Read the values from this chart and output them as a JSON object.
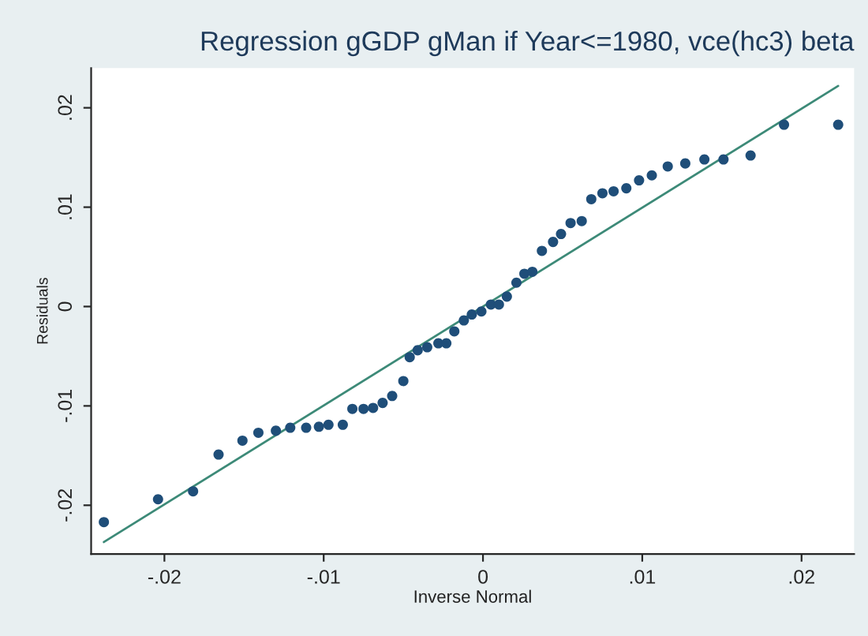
{
  "chart_data": {
    "type": "scatter",
    "title": "Regression gGDP gMan if Year<=1980, vce(hc3) beta",
    "xlabel": "Inverse Normal",
    "ylabel": "Residuals",
    "series": [
      {
        "color": "#1f4e79",
        "marker": "circle",
        "x": [
          -0.0238,
          -0.0204,
          -0.0182,
          -0.0166,
          -0.0151,
          -0.0141,
          -0.013,
          -0.0121,
          -0.0111,
          -0.0103,
          -0.0097,
          -0.0088,
          -0.0082,
          -0.0075,
          -0.0069,
          -0.0063,
          -0.0057,
          -0.005,
          -0.0046,
          -0.0041,
          -0.0035,
          -0.0028,
          -0.0023,
          -0.0018,
          -0.0012,
          -0.0007,
          -0.0001,
          0.0005,
          0.001,
          0.0015,
          0.0021,
          0.0026,
          0.0031,
          0.0037,
          0.0044,
          0.0049,
          0.0055,
          0.0062,
          0.0068,
          0.0075,
          0.0082,
          0.009,
          0.0098,
          0.0106,
          0.0116,
          0.0127,
          0.0139,
          0.0151,
          0.0168,
          0.0189,
          0.0223
        ],
        "values": [
          -0.0217,
          -0.0194,
          -0.0186,
          -0.0149,
          -0.0135,
          -0.0127,
          -0.0125,
          -0.0122,
          -0.0122,
          -0.0121,
          -0.0119,
          -0.0119,
          -0.0103,
          -0.0103,
          -0.0102,
          -0.0097,
          -0.009,
          -0.0075,
          -0.0051,
          -0.0044,
          -0.0041,
          -0.0037,
          -0.0037,
          -0.0025,
          -0.0014,
          -0.0008,
          -0.0005,
          0.0002,
          0.0002,
          0.001,
          0.0024,
          0.0033,
          0.0035,
          0.0056,
          0.0065,
          0.0073,
          0.0084,
          0.0086,
          0.0108,
          0.0114,
          0.0116,
          0.0119,
          0.0127,
          0.0132,
          0.0141,
          0.0144,
          0.0148,
          0.0148,
          0.0152,
          0.0183,
          0.0183
        ]
      },
      {
        "type": "line",
        "color": "#3d8a78",
        "line_style": "solid",
        "marker": "none",
        "x": [
          -0.0238,
          0.0223
        ],
        "values": [
          -0.0237,
          0.0222
        ]
      }
    ],
    "xlim": [
      -0.0246,
      0.0233
    ],
    "ylim": [
      -0.0249,
      0.024
    ],
    "xticks": [
      {
        "value": -0.02,
        "label": "-.02"
      },
      {
        "value": -0.01,
        "label": "-.01"
      },
      {
        "value": 0,
        "label": "0"
      },
      {
        "value": 0.01,
        "label": ".01"
      },
      {
        "value": 0.02,
        "label": ".02"
      }
    ],
    "yticks": [
      {
        "value": -0.02,
        "label": "-.02"
      },
      {
        "value": -0.01,
        "label": "-.01"
      },
      {
        "value": 0,
        "label": "0"
      },
      {
        "value": 0.01,
        "label": ".01"
      },
      {
        "value": 0.02,
        "label": ".02"
      }
    ],
    "grid": false,
    "legend": false
  }
}
